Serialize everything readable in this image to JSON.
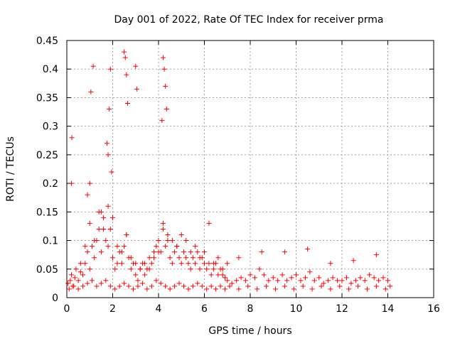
{
  "chart_data": {
    "type": "scatter",
    "title": "Day 001 of 2022, Rate Of TEC Index for receiver prma",
    "xlabel": "GPS time / hours",
    "ylabel": "ROTI / TECUs",
    "xlim": [
      0,
      16
    ],
    "ylim": [
      0,
      0.45
    ],
    "xticks": [
      0,
      2,
      4,
      6,
      8,
      10,
      12,
      14,
      16
    ],
    "yticks": [
      0,
      0.05,
      0.1,
      0.15,
      0.2,
      0.25,
      0.3,
      0.35,
      0.4,
      0.45
    ],
    "xtick_labels": [
      "0",
      "2",
      "4",
      "6",
      "8",
      "10",
      "12",
      "14",
      "16"
    ],
    "ytick_labels": [
      "0",
      "0.05",
      "0.1",
      "0.15",
      "0.2",
      "0.25",
      "0.3",
      "0.35",
      "0.4",
      "0.45"
    ],
    "grid": true,
    "marker": "+",
    "marker_color": "#ff0000",
    "series": [
      {
        "name": "ROTI",
        "x": [
          0.05,
          0.15,
          0.25,
          0.35,
          0.5,
          0.6,
          0.7,
          0.8,
          0.9,
          1.0,
          1.1,
          1.2,
          1.3,
          1.4,
          1.5,
          1.6,
          1.7,
          1.8,
          1.9,
          2.0,
          2.1,
          2.2,
          2.3,
          2.4,
          2.5,
          2.6,
          2.7,
          2.8,
          2.9,
          3.0,
          3.1,
          3.2,
          3.3,
          3.4,
          3.5,
          3.6,
          3.7,
          3.8,
          3.9,
          4.0,
          4.1,
          4.2,
          4.3,
          4.4,
          4.5,
          4.6,
          4.7,
          4.8,
          4.9,
          5.0,
          5.1,
          5.2,
          5.3,
          5.4,
          5.5,
          5.6,
          5.7,
          5.8,
          5.9,
          6.0,
          6.1,
          6.2,
          6.3,
          6.4,
          6.5,
          6.6,
          6.7,
          6.8,
          6.9,
          7.0,
          7.2,
          7.4,
          7.6,
          7.8,
          8.0,
          8.2,
          8.4,
          8.6,
          8.8,
          9.0,
          9.2,
          9.4,
          9.6,
          9.8,
          10.0,
          10.2,
          10.4,
          10.6,
          10.8,
          11.0,
          11.2,
          11.4,
          11.6,
          11.8,
          12.0,
          12.2,
          12.4,
          12.6,
          12.8,
          13.0,
          13.2,
          13.4,
          13.6,
          13.8,
          14.0,
          14.1,
          0.1,
          0.3,
          0.5,
          0.7,
          0.9,
          1.1,
          1.3,
          1.5,
          1.7,
          1.9,
          2.1,
          2.3,
          2.5,
          2.7,
          2.9,
          3.1,
          3.3,
          3.5,
          3.7,
          3.9,
          4.1,
          4.3,
          4.5,
          4.7,
          4.9,
          5.1,
          5.3,
          5.5,
          5.7,
          5.9,
          6.1,
          6.3,
          6.5,
          6.7,
          6.9,
          7.1,
          7.5,
          7.9,
          8.3,
          8.7,
          9.1,
          9.5,
          9.9,
          10.3,
          10.7,
          11.1,
          11.5,
          11.9,
          12.3,
          12.7,
          13.1,
          13.5,
          13.9,
          0.2,
          0.4,
          0.6,
          0.8,
          1.0,
          1.2,
          1.4,
          1.6,
          1.8,
          2.0,
          2.2,
          2.4,
          2.6,
          2.8,
          3.0,
          3.2,
          3.4,
          3.6,
          3.8,
          4.0,
          4.2,
          4.4,
          4.6,
          4.8,
          5.0,
          5.2,
          5.4,
          5.6,
          5.8,
          6.0,
          6.2,
          6.4,
          6.6,
          6.8,
          7.0,
          0.9,
          1.0,
          1.05,
          1.15,
          1.5,
          1.75,
          1.8,
          1.85,
          1.9,
          1.95,
          2.5,
          2.55,
          2.6,
          2.65,
          3.0,
          3.05,
          4.15,
          4.2,
          4.25,
          4.3,
          4.35,
          0.2,
          0.22,
          7.5,
          8.5,
          9.5,
          10.5,
          11.5,
          12.5,
          13.5
        ],
        "y": [
          0.025,
          0.03,
          0.02,
          0.035,
          0.03,
          0.045,
          0.04,
          0.06,
          0.08,
          0.05,
          0.09,
          0.07,
          0.1,
          0.12,
          0.08,
          0.14,
          0.1,
          0.09,
          0.12,
          0.07,
          0.05,
          0.06,
          0.08,
          0.06,
          0.09,
          0.11,
          0.07,
          0.05,
          0.06,
          0.04,
          0.03,
          0.05,
          0.06,
          0.04,
          0.05,
          0.07,
          0.06,
          0.08,
          0.09,
          0.1,
          0.08,
          0.12,
          0.09,
          0.1,
          0.07,
          0.06,
          0.08,
          0.09,
          0.07,
          0.06,
          0.08,
          0.07,
          0.06,
          0.05,
          0.07,
          0.06,
          0.08,
          0.05,
          0.07,
          0.06,
          0.05,
          0.06,
          0.04,
          0.05,
          0.06,
          0.04,
          0.05,
          0.04,
          0.035,
          0.03,
          0.025,
          0.03,
          0.035,
          0.03,
          0.04,
          0.035,
          0.05,
          0.04,
          0.03,
          0.035,
          0.03,
          0.04,
          0.03,
          0.035,
          0.04,
          0.03,
          0.035,
          0.045,
          0.03,
          0.035,
          0.025,
          0.03,
          0.035,
          0.03,
          0.03,
          0.035,
          0.025,
          0.03,
          0.035,
          0.03,
          0.04,
          0.035,
          0.03,
          0.035,
          0.03,
          0.02,
          0.015,
          0.02,
          0.015,
          0.02,
          0.025,
          0.03,
          0.02,
          0.025,
          0.03,
          0.02,
          0.015,
          0.02,
          0.025,
          0.02,
          0.015,
          0.02,
          0.025,
          0.015,
          0.02,
          0.03,
          0.025,
          0.02,
          0.015,
          0.02,
          0.025,
          0.02,
          0.015,
          0.02,
          0.025,
          0.02,
          0.015,
          0.02,
          0.015,
          0.02,
          0.015,
          0.02,
          0.015,
          0.02,
          0.015,
          0.02,
          0.015,
          0.02,
          0.015,
          0.02,
          0.015,
          0.02,
          0.015,
          0.02,
          0.015,
          0.02,
          0.015,
          0.02,
          0.015,
          0.04,
          0.05,
          0.06,
          0.09,
          0.13,
          0.1,
          0.15,
          0.12,
          0.16,
          0.14,
          0.09,
          0.08,
          0.11,
          0.07,
          0.06,
          0.05,
          0.06,
          0.05,
          0.07,
          0.08,
          0.13,
          0.11,
          0.1,
          0.09,
          0.11,
          0.1,
          0.08,
          0.09,
          0.07,
          0.08,
          0.13,
          0.06,
          0.07,
          0.05,
          0.06,
          0.18,
          0.2,
          0.36,
          0.405,
          0.15,
          0.27,
          0.25,
          0.33,
          0.4,
          0.22,
          0.43,
          0.42,
          0.39,
          0.34,
          0.405,
          0.365,
          0.31,
          0.42,
          0.4,
          0.37,
          0.33,
          0.2,
          0.28,
          0.07,
          0.08,
          0.08,
          0.085,
          0.06,
          0.065,
          0.075
        ]
      }
    ]
  }
}
